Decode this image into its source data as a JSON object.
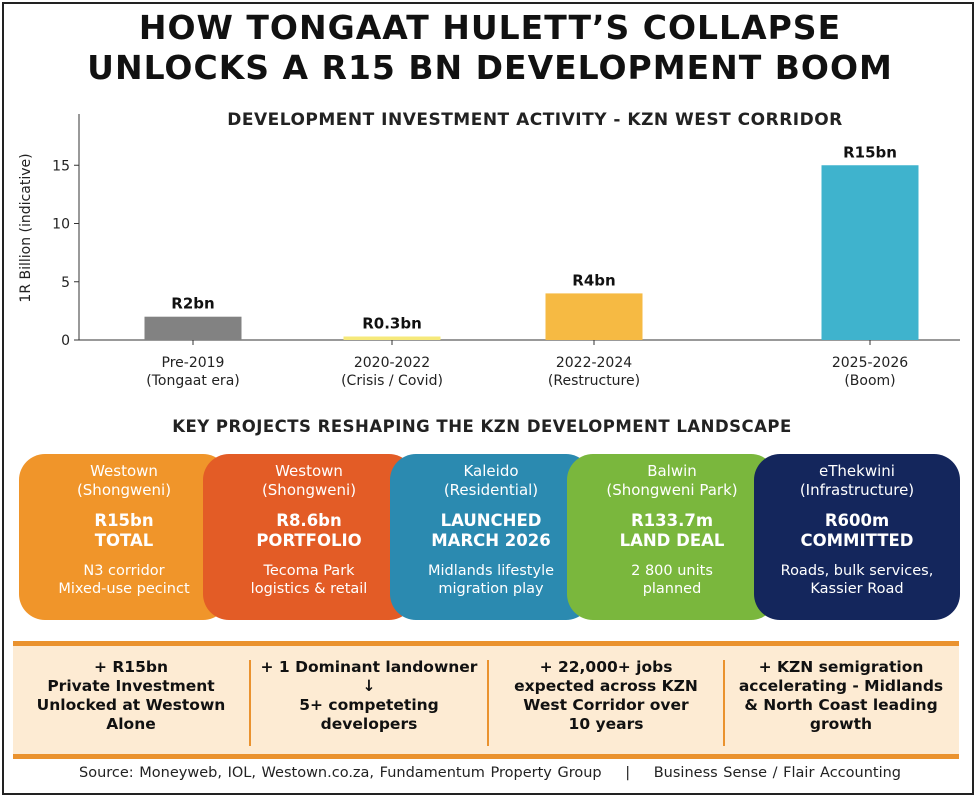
{
  "header": {
    "title_line1": "HOW TONGAAT HULETT’S COLLAPSE",
    "title_line2": "UNLOCKS A R15 BN DEVELOPMENT BOOM"
  },
  "chart_data": {
    "type": "bar",
    "title": "DEVELOPMENT INVESTMENT ACTIVITY - KZN WEST CORRIDOR",
    "ylabel": "1R Billion (indicative)",
    "xlabel": "",
    "ylim": [
      0,
      18
    ],
    "yticks": [
      0,
      5,
      10,
      15
    ],
    "grid": false,
    "categories": [
      {
        "line1": "Pre-2019",
        "line2": "(Tongaat era)"
      },
      {
        "line1": "2020-2022",
        "line2": "(Crisis / Covid)"
      },
      {
        "line1": "2022-2024",
        "line2": "(Restructure)"
      },
      {
        "line1": "2025-2026",
        "line2": "(Boom)"
      }
    ],
    "values": [
      2,
      0.3,
      4,
      15
    ],
    "data_labels": [
      "R2bn",
      "R0.3bn",
      "R4bn",
      "R15bn"
    ],
    "colors": [
      "#828282",
      "#f6e97a",
      "#f6ba43",
      "#3fb3cd"
    ]
  },
  "projects": {
    "title": "KEY PROJECTS RESHAPING THE KZN DEVELOPMENT LANDSCAPE",
    "cards": [
      {
        "head1": "Westown",
        "head2": "(Shongweni)",
        "big1": "R15bn",
        "big2": "TOTAL",
        "sub1": "N3 corridor",
        "sub2": "Mixed-use pecinct",
        "color": "#f0952a"
      },
      {
        "head1": "Westown",
        "head2": "(Shongweni)",
        "big1": "R8.6bn",
        "big2": "PORTFOLIO",
        "sub1": "Tecoma Park",
        "sub2": "logistics & retail",
        "color": "#e35c26"
      },
      {
        "head1": "Kaleido",
        "head2": "(Residential)",
        "big1": "LAUNCHED",
        "big2": "MARCH 2026",
        "sub1": "Midlands lifestyle",
        "sub2": "migration play",
        "color": "#2b8ab0"
      },
      {
        "head1": "Balwin",
        "head2": "(Shongweni Park)",
        "big1": "R133.7m",
        "big2": "LAND DEAL",
        "sub1": "2 800 units",
        "sub2": "planned",
        "color": "#7ab73d"
      },
      {
        "head1": "eThekwini",
        "head2": "(Infrastructure)",
        "big1": "R600m",
        "big2": "COMMITTED",
        "sub1": "Roads, bulk services,",
        "sub2": "Kassier Road",
        "color": "#14265c"
      }
    ]
  },
  "stats": [
    {
      "lines": [
        "+ R15bn",
        "Private Investment",
        "Unlocked at Westown",
        "Alone"
      ]
    },
    {
      "lines": [
        "+ 1 Dominant landowner",
        "↓",
        "5+ competeting",
        "developers"
      ]
    },
    {
      "lines": [
        "+ 22,000+ jobs",
        "expected across KZN",
        "West Corridor over",
        "10 years"
      ]
    },
    {
      "lines": [
        "+ KZN semigration",
        "accelerating - Midlands",
        "& North Coast leading",
        "growth"
      ]
    }
  ],
  "footer": {
    "source": "Source: Moneyweb, IOL, Westown.co.za, Fundamentum Property Group",
    "separator": "|",
    "credit": "Business Sense / Flair Accounting"
  }
}
